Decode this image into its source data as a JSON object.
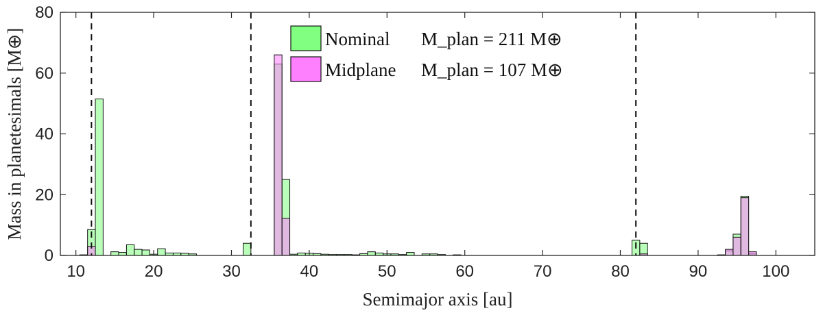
{
  "chart_data": {
    "type": "bar",
    "xlabel": "Semimajor axis [au]",
    "ylabel": "Mass in planetesimals [M⊕]",
    "xlim": [
      8,
      105
    ],
    "ylim": [
      0,
      80
    ],
    "xticks": [
      10,
      20,
      30,
      40,
      50,
      60,
      70,
      80,
      90,
      100
    ],
    "yticks": [
      0,
      20,
      40,
      60,
      80
    ],
    "grid": false,
    "legend_position": "top-center",
    "bin_width": 1,
    "reference_lines_x": [
      12,
      32.5,
      82
    ],
    "series": [
      {
        "name": "Nominal",
        "legend_text": "Nominal",
        "legend_formula": "M_plan = 211 M⊕",
        "color": "#80ff80",
        "x": [
          11,
          12,
          13,
          15,
          16,
          17,
          18,
          19,
          20,
          21,
          22,
          23,
          24,
          25,
          32,
          36,
          37,
          38,
          39,
          40,
          41,
          42,
          43,
          44,
          45,
          46,
          47,
          48,
          49,
          50,
          51,
          52,
          53,
          55,
          56,
          57,
          59,
          82,
          83,
          93,
          94,
          95,
          96,
          97
        ],
        "values": [
          0.2,
          8.5,
          51.5,
          1.2,
          1.0,
          3.5,
          2.0,
          1.8,
          0.4,
          2.2,
          0.8,
          0.8,
          0.7,
          0.5,
          4.0,
          63.0,
          25.0,
          0.4,
          0.8,
          0.7,
          0.6,
          0.4,
          0.3,
          0.3,
          0.3,
          0.2,
          0.6,
          1.2,
          0.8,
          0.5,
          0.5,
          0.3,
          1.0,
          0.5,
          0.5,
          0.3,
          0.2,
          5.0,
          4.0,
          0.2,
          1.5,
          7.0,
          19.5,
          0.5
        ]
      },
      {
        "name": "Midplane",
        "legend_text": "Midplane",
        "legend_formula": "M_plan = 107 M⊕",
        "color": "#ff80ff",
        "x": [
          12,
          36,
          37,
          83,
          94,
          95,
          96,
          97
        ],
        "values": [
          3.0,
          66.0,
          12.2,
          0.5,
          2.0,
          6.0,
          19.0,
          1.2
        ]
      }
    ]
  }
}
